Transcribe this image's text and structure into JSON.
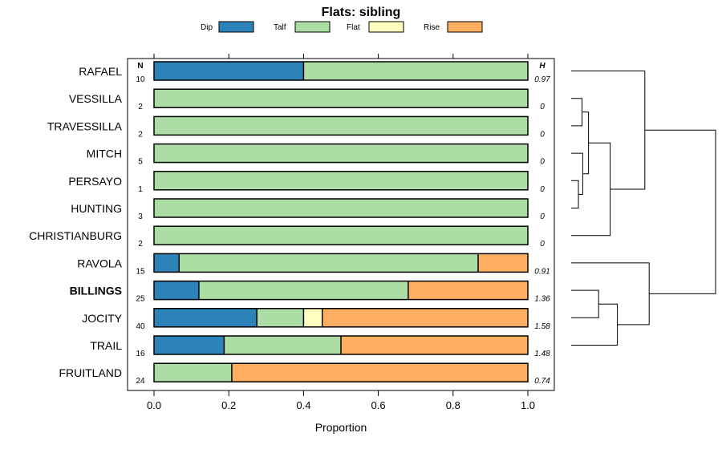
{
  "chart_data": {
    "type": "bar",
    "orientation": "horizontal-stacked",
    "title": "Flats: sibling",
    "xlabel": "Proportion",
    "xlim": [
      0,
      1
    ],
    "x_ticks": [
      "0.0",
      "0.2",
      "0.4",
      "0.6",
      "0.8",
      "1.0"
    ],
    "x_tick_values": [
      0,
      0.2,
      0.4,
      0.6,
      0.8,
      1.0
    ],
    "n_header": "N",
    "h_header": "H",
    "legend": [
      {
        "name": "Dip",
        "color": "#2b83ba"
      },
      {
        "name": "Talf",
        "color": "#abdda4"
      },
      {
        "name": "Flat",
        "color": "#ffffbf"
      },
      {
        "name": "Rise",
        "color": "#fdae61"
      }
    ],
    "categories": [
      "RAFAEL",
      "VESSILLA",
      "TRAVESSILLA",
      "MITCH",
      "PERSAYO",
      "HUNTING",
      "CHRISTIANBURG",
      "RAVOLA",
      "BILLINGS",
      "JOCITY",
      "TRAIL",
      "FRUITLAND"
    ],
    "highlight": "BILLINGS",
    "n": [
      "10",
      "2",
      "2",
      "5",
      "1",
      "3",
      "2",
      "15",
      "25",
      "40",
      "16",
      "24"
    ],
    "h": [
      "0.97",
      "0",
      "0",
      "0",
      "0",
      "0",
      "0",
      "0.91",
      "1.36",
      "1.58",
      "1.48",
      "0.74"
    ],
    "series": [
      {
        "name": "Dip",
        "values": [
          0.4,
          0,
          0,
          0,
          0,
          0,
          0,
          0.067,
          0.12,
          0.275,
          0.1875,
          0
        ]
      },
      {
        "name": "Talf",
        "values": [
          0.6,
          1,
          1,
          1,
          1,
          1,
          1,
          0.8,
          0.56,
          0.125,
          0.3125,
          0.208
        ]
      },
      {
        "name": "Flat",
        "values": [
          0,
          0,
          0,
          0,
          0,
          0,
          0,
          0,
          0,
          0.05,
          0,
          0
        ]
      },
      {
        "name": "Rise",
        "values": [
          0,
          0,
          0,
          0,
          0,
          0,
          0,
          0.133,
          0.32,
          0.55,
          0.5,
          0.792
        ]
      }
    ],
    "dendrogram": {
      "note": "hierarchical clustering of rows; leaves indexed in category order; height in relative units (0 = leaves)",
      "merges": [
        {
          "a": "L5",
          "b": "L6",
          "height": 0.05
        },
        {
          "a": "L2",
          "b": "L3",
          "height": 0.075
        },
        {
          "a": "L4",
          "b": "M1",
          "height": 0.08
        },
        {
          "a": "M2",
          "b": "M3",
          "height": 0.12
        },
        {
          "a": "L10",
          "b": "L9",
          "height": 0.19
        },
        {
          "a": "M4",
          "b": "L7",
          "height": 0.27
        },
        {
          "a": "M5",
          "b": "L11",
          "height": 0.32
        },
        {
          "a": "L1",
          "b": "M6",
          "height": 0.51
        },
        {
          "a": "L8",
          "b": "M7",
          "height": 0.54
        },
        {
          "a": "M8",
          "b": "M9",
          "height": 1.0
        }
      ]
    }
  }
}
